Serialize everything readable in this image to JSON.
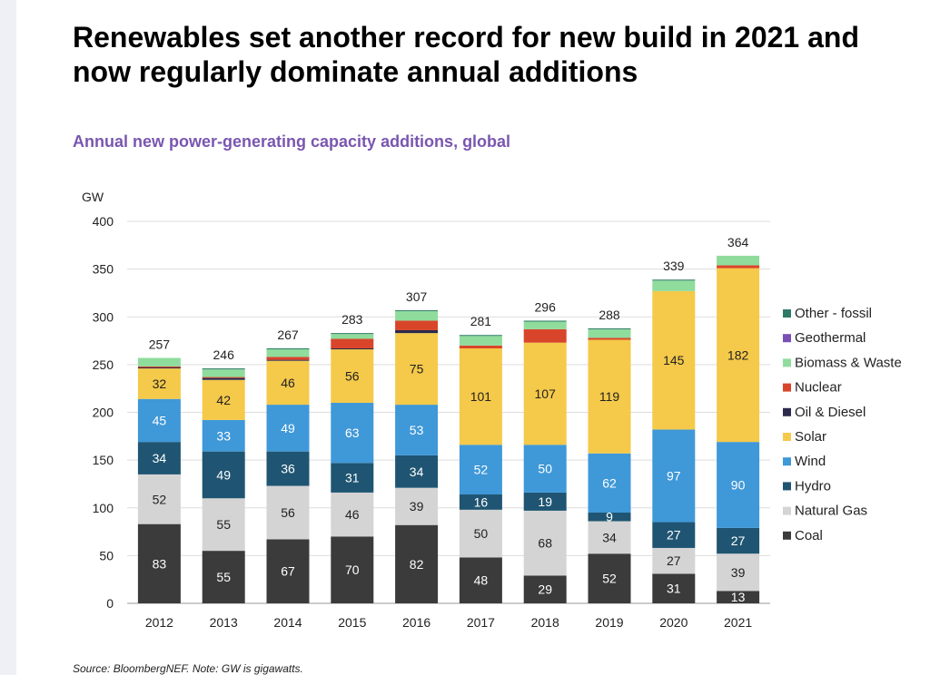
{
  "headline": "Renewables set another record for new build in 2021 and now regularly dominate annual additions",
  "footnote": "Source: BloombergNEF. Note: GW is gigawatts.",
  "chart_data": {
    "type": "bar",
    "stacked": true,
    "title": "Annual new power-generating capacity additions, global",
    "ylabel": "GW",
    "xlabel": "",
    "ylim": [
      0,
      400
    ],
    "yticks": [
      0,
      50,
      100,
      150,
      200,
      250,
      300,
      350,
      400
    ],
    "grid": true,
    "legend_position": "right",
    "categories": [
      "2012",
      "2013",
      "2014",
      "2015",
      "2016",
      "2017",
      "2018",
      "2019",
      "2020",
      "2021"
    ],
    "totals": [
      257,
      246,
      267,
      283,
      307,
      281,
      296,
      288,
      339,
      364
    ],
    "series": [
      {
        "name": "Coal",
        "color": "#3b3b3b",
        "values": [
          83,
          55,
          67,
          70,
          82,
          48,
          29,
          52,
          31,
          13
        ],
        "labels": [
          "83",
          "55",
          "67",
          "70",
          "82",
          "48",
          "29",
          "52",
          "31",
          "13"
        ]
      },
      {
        "name": "Natural Gas",
        "color": "#d4d4d4",
        "values": [
          52,
          55,
          56,
          46,
          39,
          50,
          68,
          34,
          27,
          39
        ],
        "labels": [
          "52",
          "55",
          "56",
          "46",
          "39",
          "50",
          "68",
          "34",
          "27",
          "39"
        ]
      },
      {
        "name": "Hydro",
        "color": "#1f5572",
        "values": [
          34,
          49,
          36,
          31,
          34,
          16,
          19,
          9,
          27,
          27
        ],
        "labels": [
          "34",
          "49",
          "36",
          "31",
          "34",
          "16",
          "19",
          "9",
          "27",
          "27"
        ]
      },
      {
        "name": "Wind",
        "color": "#3f98d8",
        "values": [
          45,
          33,
          49,
          63,
          53,
          52,
          50,
          62,
          97,
          90
        ],
        "labels": [
          "45",
          "33",
          "49",
          "63",
          "53",
          "52",
          "50",
          "62",
          "97",
          "90"
        ]
      },
      {
        "name": "Solar",
        "color": "#f5c94a",
        "values": [
          32,
          42,
          46,
          56,
          75,
          101,
          107,
          119,
          145,
          182
        ],
        "labels": [
          "32",
          "42",
          "46",
          "56",
          "75",
          "101",
          "107",
          "119",
          "145",
          "182"
        ]
      },
      {
        "name": "Oil & Diesel",
        "color": "#2b2a4c",
        "values": [
          1,
          2,
          1,
          1,
          3,
          0,
          0,
          0,
          0,
          0
        ],
        "labels": []
      },
      {
        "name": "Nuclear",
        "color": "#d9452a",
        "values": [
          1,
          1,
          3,
          10,
          10,
          3,
          14,
          2,
          0,
          3
        ],
        "labels": []
      },
      {
        "name": "Biomass & Waste",
        "color": "#8fdc9d",
        "values": [
          9,
          8,
          8,
          5,
          10,
          10,
          8,
          9,
          11,
          10
        ],
        "labels": []
      },
      {
        "name": "Geothermal",
        "color": "#7b4fb5",
        "values": [
          0,
          0,
          0,
          0,
          0,
          0,
          0,
          0,
          0,
          0
        ],
        "labels": []
      },
      {
        "name": "Other - fossil",
        "color": "#2e7a66",
        "values": [
          0,
          1,
          1,
          1,
          1,
          1,
          1,
          1,
          1,
          0
        ],
        "labels": []
      }
    ],
    "legend_order": [
      "Other - fossil",
      "Geothermal",
      "Biomass & Waste",
      "Nuclear",
      "Oil & Diesel",
      "Solar",
      "Wind",
      "Hydro",
      "Natural Gas",
      "Coal"
    ]
  }
}
